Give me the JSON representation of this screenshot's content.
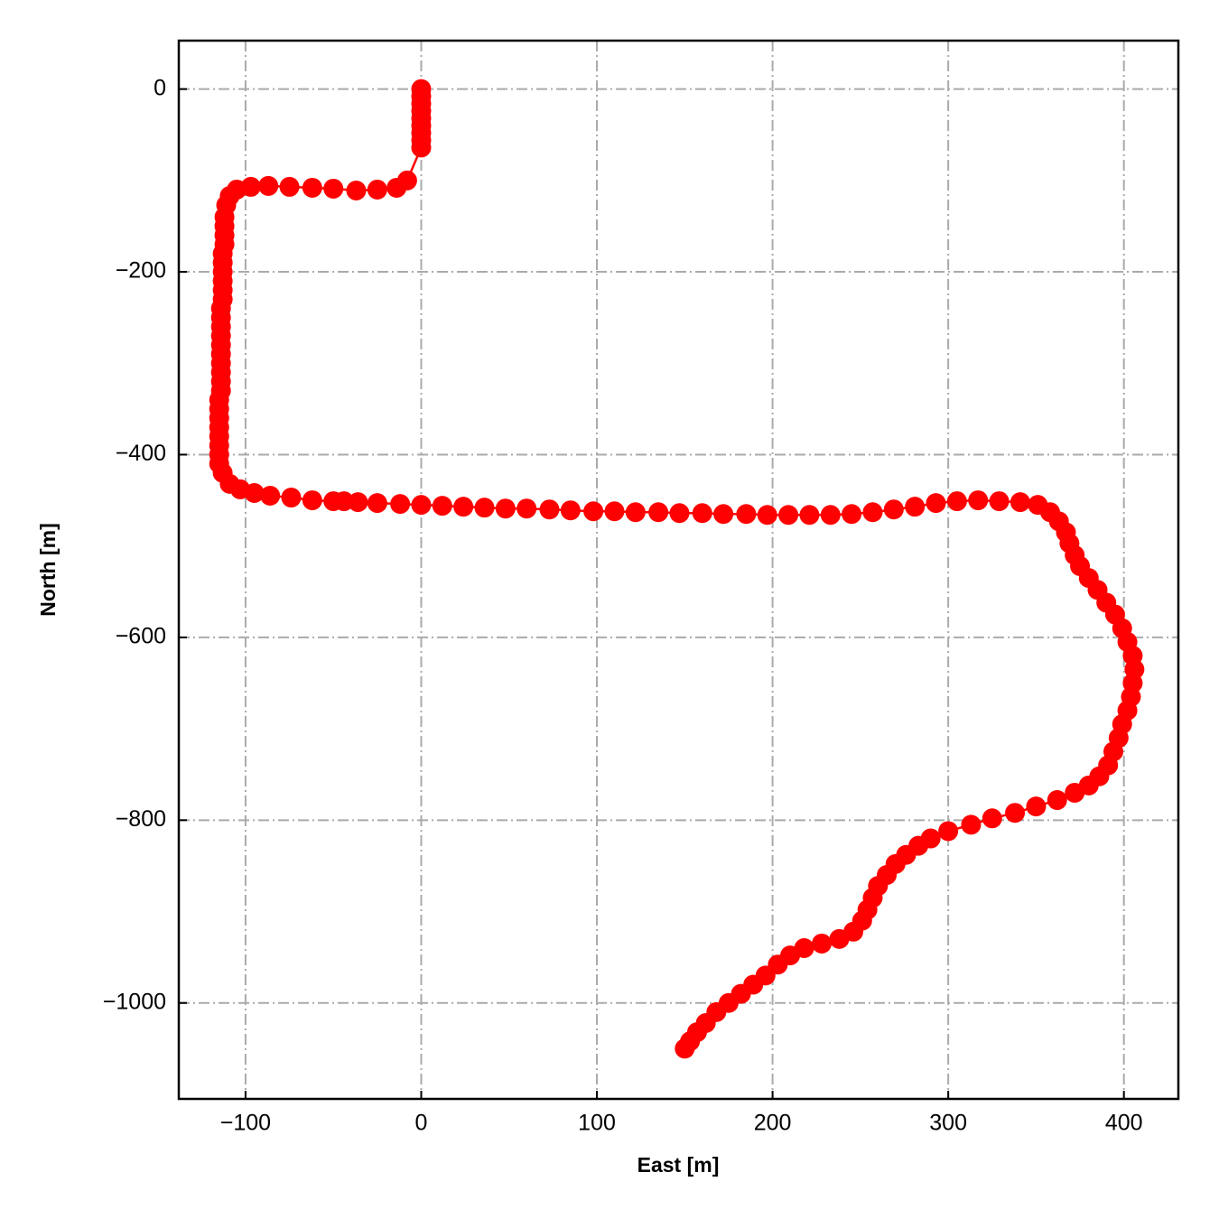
{
  "chart_data": {
    "type": "line",
    "xlabel": "East [m]",
    "ylabel": "North [m]",
    "color": "#ff0000",
    "grid": true,
    "x": [
      0,
      0,
      0,
      0,
      0,
      0,
      0,
      0,
      0,
      -8,
      -14,
      -25,
      -37,
      -50,
      -62,
      -75,
      -87,
      -97,
      -105,
      -109,
      -111,
      -112,
      -112,
      -112,
      -112,
      -113,
      -113,
      -113,
      -113,
      -113,
      -113,
      -114,
      -114,
      -114,
      -114,
      -114,
      -114,
      -114,
      -114,
      -114,
      -114,
      -115,
      -115,
      -115,
      -115,
      -115,
      -115,
      -115,
      -115,
      -113,
      -109,
      -103,
      -95,
      -86,
      -74,
      -62,
      -50,
      -44,
      -36,
      -25,
      -12,
      0,
      12,
      24,
      36,
      48,
      60,
      73,
      85,
      98,
      110,
      122,
      135,
      147,
      160,
      172,
      185,
      197,
      209,
      221,
      233,
      245,
      257,
      269,
      281,
      293,
      305,
      317,
      329,
      341,
      351,
      358,
      363,
      367,
      369,
      372,
      375,
      380,
      385,
      390,
      395,
      399,
      402,
      405,
      406,
      405,
      404,
      402,
      399,
      397,
      394,
      391,
      386,
      380,
      372,
      362,
      350,
      338,
      325,
      313,
      300,
      290,
      283,
      276,
      270,
      265,
      260,
      257,
      254,
      251,
      246,
      238,
      228,
      218,
      210,
      203,
      196,
      189,
      182,
      175,
      168,
      162,
      157,
      153,
      150
    ],
    "values": [
      0,
      -8,
      -16,
      -24,
      -32,
      -40,
      -48,
      -56,
      -64,
      -100,
      -108,
      -110,
      -111,
      -109,
      -108,
      -107,
      -106,
      -107,
      -110,
      -117,
      -127,
      -140,
      -150,
      -160,
      -170,
      -180,
      -190,
      -200,
      -210,
      -220,
      -230,
      -240,
      -250,
      -260,
      -270,
      -280,
      -290,
      -300,
      -310,
      -320,
      -330,
      -340,
      -350,
      -360,
      -370,
      -380,
      -390,
      -400,
      -410,
      -420,
      -432,
      -438,
      -442,
      -445,
      -447,
      -450,
      -451,
      -451,
      -452,
      -453,
      -454,
      -455,
      -456,
      -457,
      -458,
      -459,
      -459,
      -460,
      -461,
      -462,
      -462,
      -463,
      -463,
      -464,
      -464,
      -465,
      -465,
      -466,
      -466,
      -466,
      -466,
      -465,
      -463,
      -460,
      -457,
      -453,
      -451,
      -450,
      -451,
      -452,
      -455,
      -463,
      -473,
      -485,
      -497,
      -510,
      -522,
      -535,
      -548,
      -562,
      -575,
      -590,
      -605,
      -620,
      -635,
      -650,
      -665,
      -680,
      -695,
      -710,
      -725,
      -740,
      -752,
      -762,
      -770,
      -778,
      -785,
      -792,
      -798,
      -805,
      -812,
      -820,
      -828,
      -838,
      -848,
      -860,
      -872,
      -885,
      -898,
      -910,
      -922,
      -930,
      -935,
      -940,
      -948,
      -958,
      -970,
      -980,
      -990,
      -1000,
      -1010,
      -1022,
      -1032,
      -1042,
      -1050
    ],
    "xlim": [
      -138,
      431
    ],
    "ylim": [
      -1105,
      53
    ],
    "xticks": [
      {
        "value": -100,
        "label": "−100"
      },
      0,
      100,
      200,
      300,
      400
    ],
    "yticks": [
      0,
      {
        "value": -200,
        "label": "−200"
      },
      {
        "value": -400,
        "label": "−400"
      },
      {
        "value": -600,
        "label": "−600"
      },
      {
        "value": -800,
        "label": "−800"
      },
      {
        "value": -1000,
        "label": "−1000"
      }
    ]
  }
}
